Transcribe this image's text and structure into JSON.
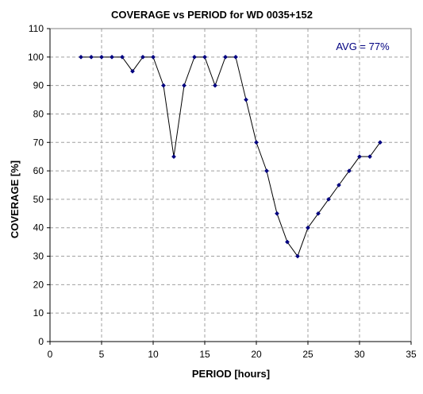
{
  "chart_data": {
    "type": "line",
    "title": "COVERAGE vs PERIOD for WD 0035+152",
    "xlabel": "PERIOD [hours]",
    "ylabel": "COVERAGE [%]",
    "xlim": [
      0,
      35
    ],
    "ylim": [
      0,
      110
    ],
    "x_ticks": [
      0,
      5,
      10,
      15,
      20,
      25,
      30,
      35
    ],
    "y_ticks": [
      0,
      10,
      20,
      30,
      40,
      50,
      60,
      70,
      80,
      90,
      100,
      110
    ],
    "grid": true,
    "annotation": "AVG = 77%",
    "series": [
      {
        "x": [
          3,
          4,
          5,
          6,
          7,
          8,
          9,
          10,
          11,
          12,
          13,
          14,
          15,
          16,
          17,
          18,
          19,
          20,
          21,
          22,
          23,
          24,
          25,
          26,
          27,
          28,
          29,
          30,
          31,
          32
        ],
        "y": [
          100,
          100,
          100,
          100,
          100,
          95,
          100,
          100,
          90,
          65,
          90,
          100,
          100,
          90,
          100,
          100,
          85,
          70,
          60,
          45,
          35,
          30,
          40,
          45,
          50,
          55,
          60,
          65,
          65,
          70
        ]
      }
    ],
    "colors": {
      "line": "#000000",
      "marker": "#000080",
      "grid": "#a0a0a0",
      "annotation": "#000080"
    }
  }
}
